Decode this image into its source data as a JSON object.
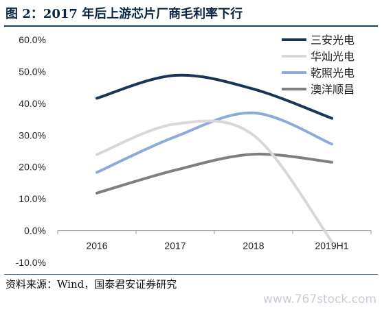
{
  "figure": {
    "title": "图 2：2017 年后上游芯片厂商毛利率下行",
    "source": "资料来源：Wind，国泰君安证券研究",
    "watermark": "www.767stock.com"
  },
  "chart_data": {
    "type": "line",
    "title": "",
    "xlabel": "",
    "ylabel": "",
    "categories": [
      "2016",
      "2017",
      "2018",
      "2019H1"
    ],
    "ylim": [
      -10,
      60
    ],
    "yticks": [
      "-10.0%",
      "0.0%",
      "10.0%",
      "20.0%",
      "30.0%",
      "40.0%",
      "50.0%",
      "60.0%"
    ],
    "y_tick_values": [
      -10,
      0,
      10,
      20,
      30,
      40,
      50,
      60
    ],
    "grid": false,
    "legend_position": "top-right",
    "smooth": true,
    "series": [
      {
        "name": "三安光电",
        "color": "#1b3557",
        "values": [
          41.6,
          48.8,
          44.5,
          35.3
        ]
      },
      {
        "name": "华灿光电",
        "color": "#d8d8d8",
        "values": [
          23.9,
          33.5,
          30.0,
          -3.5
        ]
      },
      {
        "name": "乾照光电",
        "color": "#8eaadb",
        "values": [
          18.3,
          29.5,
          37.0,
          27.2
        ]
      },
      {
        "name": "澳洋顺昌",
        "color": "#7f7f7f",
        "values": [
          11.8,
          19.0,
          24.0,
          21.5
        ]
      }
    ]
  }
}
